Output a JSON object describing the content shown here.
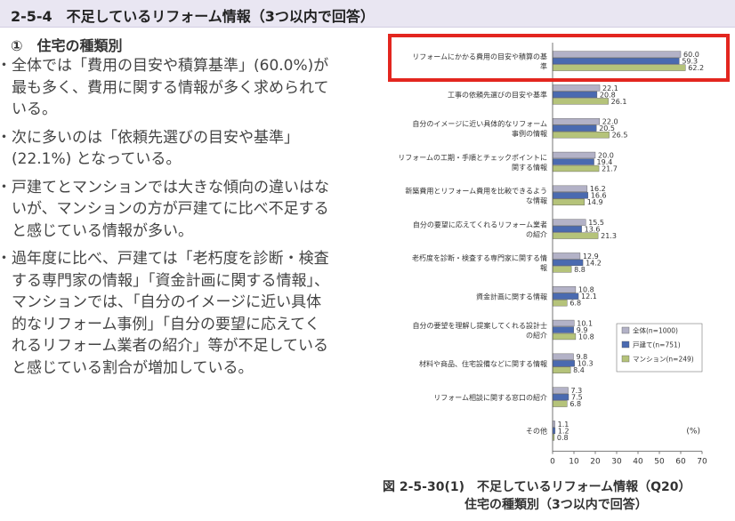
{
  "section_title": "2-5-4　不足しているリフォーム情報（3つ以内で回答）",
  "subsection_title": "①　住宅の種類別",
  "bullets": [
    "全体では「費用の目安や積算基準」(60.0%)が最も多く、費用に関する情報が多く求められている。",
    "次に多いのは「依頼先選びの目安や基準」(22.1%) となっている。",
    "戸建てとマンションでは大きな傾向の違いはないが、マンションの方が戸建てに比べ不足すると感じている情報が多い。",
    "過年度に比べ、戸建ては「老朽度を診断・検査する専門家の情報」「資金計画に関する情報」、マンションでは、「自分のイメージに近い具体的なリフォーム事例」「自分の要望に応えてくれるリフォーム業者の紹介」等が不足していると感じている割合が増加している。"
  ],
  "caption_line1": "図 2-5-30(1)　不足しているリフォーム情報（Q20）",
  "caption_line2": "住宅の種類別（3つ以内で回答）",
  "colors": {
    "all": "#b3b2c7",
    "house": "#4a6ab0",
    "mansion": "#b5c37a",
    "highlight": "#e3261f"
  },
  "chart_data": {
    "type": "bar",
    "orientation": "horizontal",
    "unit_label": "(%)",
    "xlim": [
      0,
      70
    ],
    "xticks": [
      0,
      10,
      20,
      30,
      40,
      50,
      60,
      70
    ],
    "categories": [
      [
        "リフォームにかかる費用の目安や積算の基",
        "準"
      ],
      [
        "工事の依頼先選びの目安や基準"
      ],
      [
        "自分のイメージに近い具体的なリフォーム",
        "事例の情報"
      ],
      [
        "リフォームの工期・手順とチェックポイントに",
        "関する情報"
      ],
      [
        "新築費用とリフォーム費用を比較できるよう",
        "な情報"
      ],
      [
        "自分の要望に応えてくれるリフォーム業者",
        "の紹介"
      ],
      [
        "老朽度を診断・検査する専門家に関する情",
        "報"
      ],
      [
        "資金計画に関する情報"
      ],
      [
        "自分の要望を理解し提案してくれる設計士",
        "の紹介"
      ],
      [
        "材料や商品、住宅設備などに関する情報"
      ],
      [
        "リフォーム相談に関する窓口の紹介"
      ],
      [
        "その他"
      ]
    ],
    "series": [
      {
        "name": "全体(n=1000)",
        "values": [
          60.0,
          22.1,
          22.0,
          20.0,
          16.2,
          15.5,
          12.9,
          10.8,
          10.1,
          9.8,
          7.3,
          1.1
        ]
      },
      {
        "name": "戸建て(n=751)",
        "values": [
          59.3,
          20.8,
          20.5,
          19.4,
          16.6,
          13.6,
          14.2,
          12.1,
          9.9,
          10.3,
          7.5,
          1.2
        ]
      },
      {
        "name": "マンション(n=249)",
        "values": [
          62.2,
          26.1,
          26.5,
          21.7,
          14.9,
          21.3,
          8.8,
          6.8,
          10.8,
          8.4,
          6.8,
          0.8
        ]
      }
    ],
    "legend_position": "bottom-right",
    "grid": false
  }
}
